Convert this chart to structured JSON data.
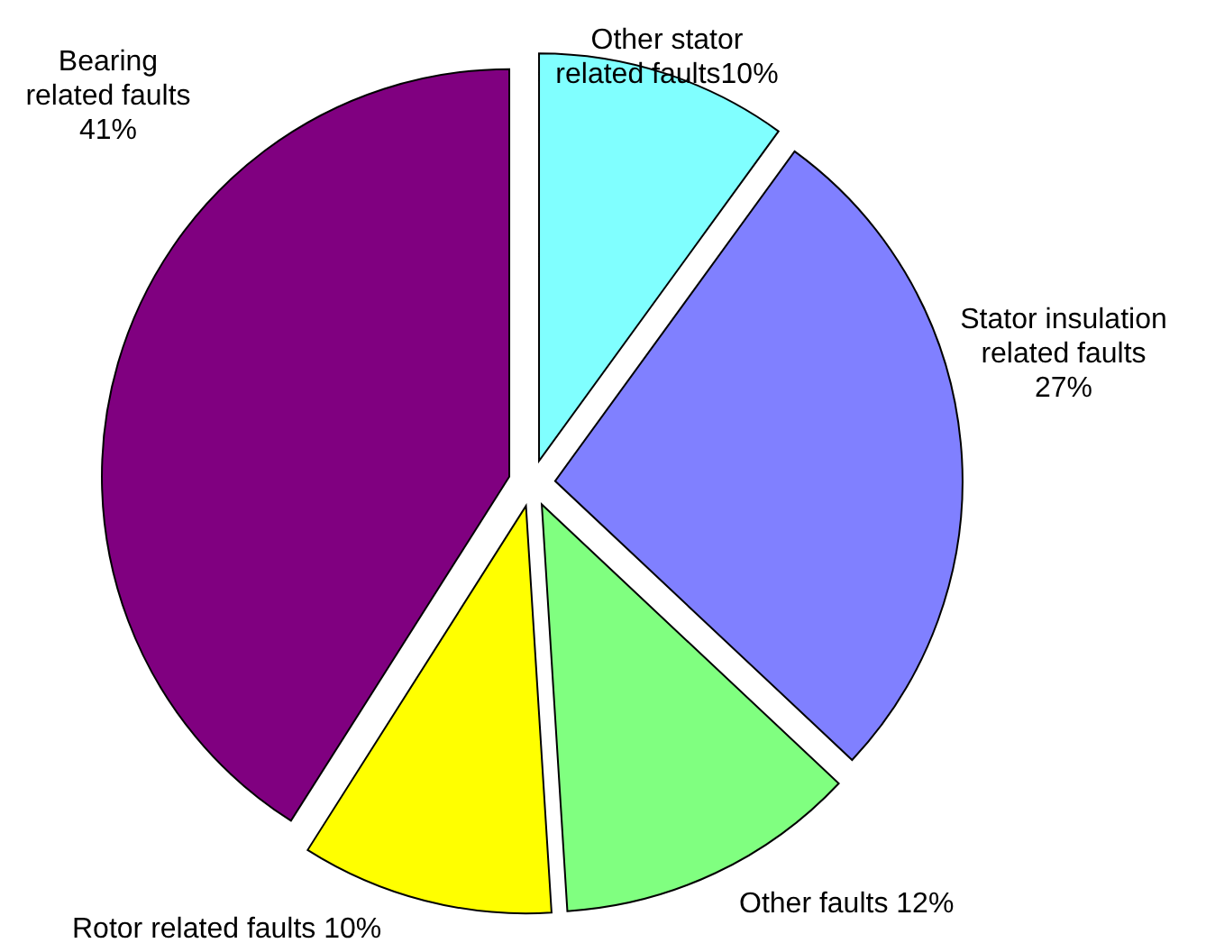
{
  "chart_data": {
    "type": "pie",
    "categories": [
      "Other stator related faults",
      "Stator insulation related faults",
      "Other faults",
      "Rotor related faults",
      "Bearing related faults"
    ],
    "values": [
      10,
      27,
      12,
      10,
      41
    ],
    "colors": [
      "#80ffff",
      "#8080ff",
      "#80ff80",
      "#ffff00",
      "#800080"
    ],
    "value_labels": [
      "10%",
      "27%",
      "12%",
      "10%",
      "41%"
    ]
  }
}
